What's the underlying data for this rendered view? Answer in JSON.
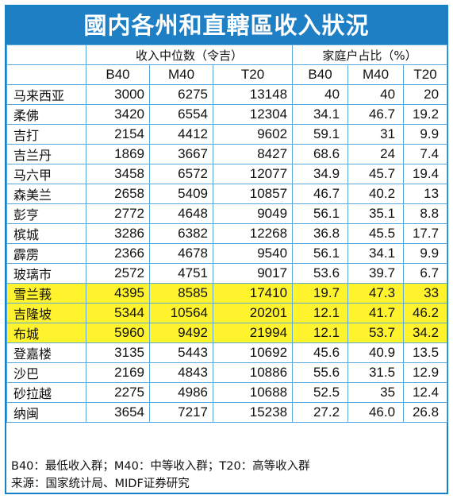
{
  "title": "國内各州和直轄區收入狀況",
  "groups": {
    "income": "收入中位数（令吉）",
    "share": "家庭户占比（%）"
  },
  "columns": [
    "B40",
    "M40",
    "T20",
    "B40",
    "M40",
    "T20"
  ],
  "rows": [
    {
      "state": "马来西亚",
      "income": [
        "3000",
        "6275",
        "13148"
      ],
      "share": [
        "40",
        "40",
        "20"
      ],
      "highlight": false
    },
    {
      "state": "柔佛",
      "income": [
        "3420",
        "6554",
        "12304"
      ],
      "share": [
        "34.1",
        "46.7",
        "19.2"
      ],
      "highlight": false
    },
    {
      "state": "吉打",
      "income": [
        "2154",
        "4412",
        "9602"
      ],
      "share": [
        "59.1",
        "31",
        "9.9"
      ],
      "highlight": false
    },
    {
      "state": "吉兰丹",
      "income": [
        "1869",
        "3667",
        "8427"
      ],
      "share": [
        "68.6",
        "24",
        "7.4"
      ],
      "highlight": false
    },
    {
      "state": "马六甲",
      "income": [
        "3458",
        "6572",
        "12077"
      ],
      "share": [
        "34.9",
        "45.7",
        "19.4"
      ],
      "highlight": false
    },
    {
      "state": "森美兰",
      "income": [
        "2658",
        "5409",
        "10857"
      ],
      "share": [
        "46.7",
        "40.2",
        "13"
      ],
      "highlight": false
    },
    {
      "state": "彭亨",
      "income": [
        "2772",
        "4648",
        "9049"
      ],
      "share": [
        "56.1",
        "35.1",
        "8.8"
      ],
      "highlight": false
    },
    {
      "state": "槟城",
      "income": [
        "3286",
        "6382",
        "12268"
      ],
      "share": [
        "36.8",
        "45.5",
        "17.7"
      ],
      "highlight": false
    },
    {
      "state": "霹雳",
      "income": [
        "2366",
        "4678",
        "9540"
      ],
      "share": [
        "56.1",
        "34.1",
        "9.9"
      ],
      "highlight": false
    },
    {
      "state": "玻璃市",
      "income": [
        "2572",
        "4751",
        "9017"
      ],
      "share": [
        "53.6",
        "39.7",
        "6.7"
      ],
      "highlight": false
    },
    {
      "state": "雪兰莪",
      "income": [
        "4395",
        "8585",
        "17410"
      ],
      "share": [
        "19.7",
        "47.3",
        "33"
      ],
      "highlight": true
    },
    {
      "state": "吉隆坡",
      "income": [
        "5344",
        "10564",
        "20201"
      ],
      "share": [
        "12.1",
        "41.7",
        "46.2"
      ],
      "highlight": true
    },
    {
      "state": "布城",
      "income": [
        "5960",
        "9492",
        "21994"
      ],
      "share": [
        "12.1",
        "53.7",
        "34.2"
      ],
      "highlight": true
    },
    {
      "state": "登嘉楼",
      "income": [
        "3135",
        "5443",
        "10692"
      ],
      "share": [
        "45.6",
        "40.9",
        "13.5"
      ],
      "highlight": false
    },
    {
      "state": "沙巴",
      "income": [
        "2169",
        "4843",
        "10886"
      ],
      "share": [
        "55.6",
        "31.5",
        "12.9"
      ],
      "highlight": false
    },
    {
      "state": "砂拉越",
      "income": [
        "2275",
        "4986",
        "10688"
      ],
      "share": [
        "52.5",
        "35",
        "12.4"
      ],
      "highlight": false
    },
    {
      "state": "纳闽",
      "income": [
        "3654",
        "7217",
        "15238"
      ],
      "share": [
        "27.2",
        "46.0",
        "26.8"
      ],
      "highlight": false
    }
  ],
  "footer": {
    "legend": "B40：最低收入群；M40：中等收入群；T20：高等收入群",
    "source": "来源：国家统计局、MIDF证券研究"
  },
  "colors": {
    "header_bg": "#1e7fc4",
    "border": "#5aa8dd",
    "highlight": "#fff32e"
  }
}
